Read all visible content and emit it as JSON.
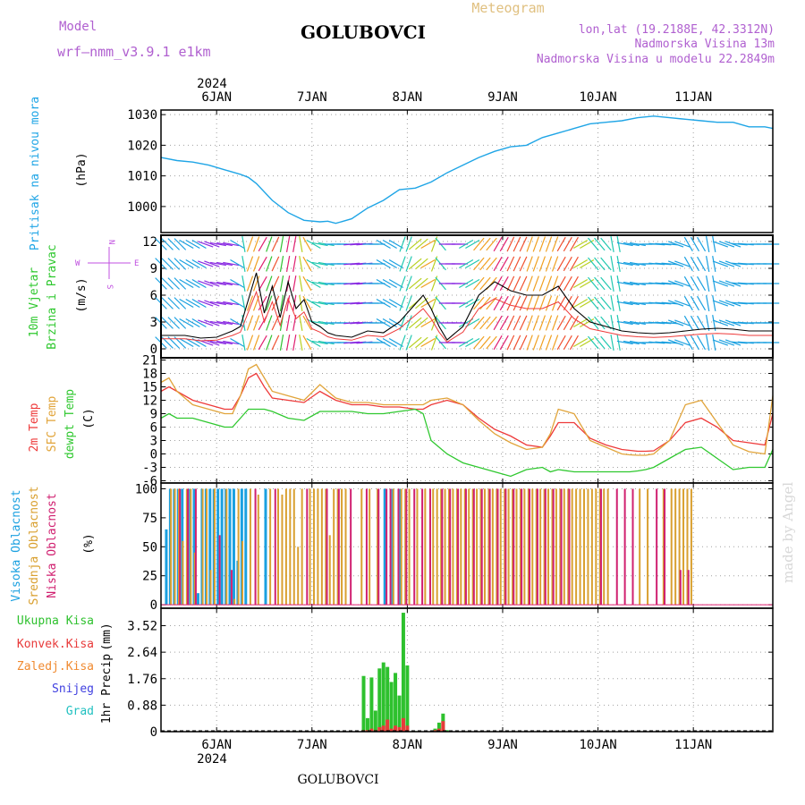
{
  "header": {
    "model_label": "Model",
    "model_name": "wrf—nmm_v3.9.1 e1km",
    "station": "GOLUBOVCI",
    "product": "Meteogram",
    "lonlat": "lon,lat (19.2188E, 42.3312N)",
    "elevation": "Nadmorska Visina 13m",
    "model_elevation": "Nadmorska Visina u modelu 22.2849m",
    "credit": "made by Angel",
    "footer_station": "GOLUBOVCI"
  },
  "colors": {
    "frame": "#000000",
    "grid": "#a0a0a0",
    "pressure": "#1fa5e6",
    "temp2m": "#ee3a3a",
    "sfc_temp": "#e1a43a",
    "dewpoint": "#2fc82f",
    "cloud_high": "#1aa0e0",
    "cloud_mid": "#d9a030",
    "cloud_low": "#d02070",
    "precip_total": "#2ec12e",
    "precip_conv": "#e83a3a",
    "precip_frozen": "#f08a30",
    "snow": "#4040e0",
    "hail": "#20c0c0",
    "title_purple": "#b060d0",
    "title_gold": "#e0c080"
  },
  "time_axis": {
    "year": "2024",
    "day_labels": [
      "6JAN",
      "7JAN",
      "8JAN",
      "9JAN",
      "10JAN",
      "11JAN"
    ],
    "hours_range": [
      -14,
      140
    ]
  },
  "chart_data": [
    {
      "type": "line",
      "id": "pressure",
      "ylabel_main": "Pritisak na nivou mora",
      "ylabel_unit": "(hPa)",
      "yticks": [
        1000,
        1010,
        1020,
        1030
      ],
      "ylim": [
        991.5,
        1031.5
      ],
      "grid": true,
      "series": [
        {
          "x": [
            -14,
            -10,
            -6,
            -2,
            2,
            6,
            8,
            10,
            14,
            18,
            22,
            26,
            28,
            30,
            34,
            38,
            42,
            46,
            50,
            54,
            58,
            62,
            66,
            70,
            74,
            78,
            82,
            86,
            90,
            94,
            98,
            102,
            106,
            110,
            114,
            118,
            122,
            126,
            130,
            134,
            138,
            140
          ],
          "y": [
            1016,
            1015,
            1014.5,
            1013.5,
            1012,
            1010.5,
            1009.5,
            1007.5,
            1002,
            998,
            995.5,
            995,
            995.2,
            994.5,
            996,
            999.5,
            1002,
            1005.5,
            1006,
            1008,
            1011,
            1013.5,
            1016,
            1018,
            1019.5,
            1020,
            1022.5,
            1024,
            1025.5,
            1027,
            1027.5,
            1028,
            1029,
            1029.5,
            1029,
            1028.5,
            1028,
            1027.5,
            1027.5,
            1026,
            1026,
            1025.5
          ]
        }
      ]
    },
    {
      "type": "line",
      "id": "wind",
      "ylabel_main": "10m Vjetar",
      "ylabel_sub": "Brzina i Pravac",
      "ylabel_unit": "(m/s)",
      "compass": {
        "n": "N",
        "s": "S",
        "w": "W",
        "e": "E"
      },
      "yticks": [
        0,
        3,
        6,
        9,
        12
      ],
      "ylim": [
        -1,
        12.7
      ],
      "grid": true,
      "series": [
        {
          "name": "speed",
          "x": [
            -14,
            -8,
            -4,
            0,
            4,
            6,
            8,
            10,
            12,
            14,
            16,
            18,
            20,
            22,
            24,
            26,
            28,
            30,
            34,
            38,
            42,
            46,
            50,
            52,
            54,
            56,
            58,
            62,
            66,
            70,
            74,
            78,
            82,
            86,
            90,
            94,
            98,
            102,
            106,
            110,
            114,
            118,
            122,
            126,
            130,
            134,
            138,
            140
          ],
          "y": [
            1.5,
            1.5,
            1.2,
            1.3,
            2.0,
            2.5,
            5.5,
            8.5,
            4.0,
            7.0,
            3.5,
            7.5,
            4.5,
            5.5,
            3.0,
            2.5,
            1.8,
            1.5,
            1.3,
            2.0,
            1.8,
            3.0,
            5.0,
            6.0,
            4.5,
            2.5,
            1.0,
            2.5,
            6.0,
            7.5,
            6.5,
            6.0,
            6.0,
            7.0,
            4.5,
            3.0,
            2.5,
            2.0,
            1.8,
            1.7,
            1.8,
            2.0,
            2.2,
            2.3,
            2.2,
            2.0,
            2.0,
            2.0
          ]
        }
      ],
      "direction_deg": [
        135,
        120,
        110,
        100,
        120,
        170,
        200,
        210,
        200,
        205,
        190,
        190,
        170,
        150,
        120,
        100,
        90,
        90,
        85,
        90,
        120,
        200,
        230,
        240,
        200,
        140,
        90,
        60,
        40,
        30,
        25,
        20,
        20,
        30,
        60,
        140,
        170,
        100,
        90,
        95,
        110,
        150,
        170,
        110,
        95,
        90,
        90,
        90
      ]
    },
    {
      "type": "line",
      "id": "temperature",
      "ylabel_series": [
        "2m Temp",
        "SFC Temp",
        "dewpt Temp"
      ],
      "ylabel_unit": "(C)",
      "yticks": [
        -6,
        -3,
        0,
        3,
        6,
        9,
        12,
        15,
        18,
        21
      ],
      "ylim": [
        -6.5,
        21.5
      ],
      "grid": true,
      "x": [
        -14,
        -12,
        -10,
        -6,
        -2,
        2,
        4,
        6,
        8,
        10,
        12,
        14,
        18,
        22,
        26,
        28,
        30,
        34,
        38,
        42,
        46,
        50,
        52,
        54,
        58,
        62,
        66,
        70,
        74,
        78,
        82,
        84,
        86,
        90,
        94,
        98,
        102,
        104,
        106,
        108,
        110,
        114,
        118,
        122,
        126,
        130,
        134,
        138,
        140
      ],
      "series": [
        {
          "name": "2m Temp",
          "y": [
            14,
            15,
            14,
            12,
            11,
            10,
            10,
            13,
            17,
            18,
            15,
            12.5,
            12,
            11.5,
            14,
            13,
            12,
            11,
            11,
            10.5,
            10.5,
            10,
            10,
            11,
            12,
            11,
            8,
            5.5,
            4,
            2,
            1.5,
            4,
            7,
            7,
            3.5,
            2,
            1,
            0.8,
            0.6,
            0.6,
            0.7,
            3,
            7,
            8,
            6,
            3,
            2.5,
            2,
            9
          ]
        },
        {
          "name": "SFC Temp",
          "y": [
            16,
            17,
            14,
            11,
            10,
            9,
            9,
            13,
            19,
            20,
            17,
            14,
            13,
            12,
            15.5,
            14,
            12.5,
            11.5,
            11.5,
            11,
            11,
            11,
            11,
            12,
            12.5,
            11,
            7.5,
            4.5,
            2.5,
            1,
            1.5,
            4.5,
            10,
            9,
            3,
            1.5,
            0,
            -0.2,
            -0.3,
            -0.3,
            0,
            3,
            11,
            12,
            7,
            2,
            0.5,
            0,
            13
          ]
        },
        {
          "name": "dewpt Temp",
          "y": [
            8,
            9,
            8,
            8,
            7,
            6,
            6,
            8,
            10,
            10,
            10,
            9.5,
            8,
            7.5,
            9.5,
            9.5,
            9.5,
            9.5,
            9,
            9,
            9.5,
            10,
            9,
            3,
            0,
            -2,
            -3,
            -4,
            -5,
            -3.5,
            -3,
            -4,
            -3.5,
            -4,
            -4,
            -4,
            -4,
            -4,
            -3.8,
            -3.5,
            -3,
            -1,
            1,
            1.5,
            -1,
            -3.5,
            -3,
            -3,
            1
          ]
        }
      ]
    },
    {
      "type": "bar",
      "id": "cloud",
      "ylabel_series": [
        "Visoka Oblacnost",
        "Srednja Oblacnost",
        "Niska Oblacnost"
      ],
      "ylabel_unit": "(%)",
      "yticks": [
        0,
        25,
        50,
        75,
        100
      ],
      "ylim": [
        -3,
        105
      ],
      "grid": true,
      "series": [
        {
          "name": "Visoka Oblacnost",
          "x": [
            -13,
            -12,
            -11,
            -10,
            -9,
            -7,
            -6,
            -5,
            -4,
            -3,
            -2,
            -1,
            0,
            1,
            2,
            3,
            4,
            5,
            6,
            7,
            12,
            42,
            44,
            46
          ],
          "y": [
            65,
            100,
            100,
            100,
            100,
            100,
            100,
            10,
            100,
            100,
            100,
            100,
            100,
            100,
            100,
            100,
            100,
            38,
            100,
            100,
            100,
            100,
            100,
            100
          ]
        },
        {
          "name": "Srednja Oblacnost",
          "x": [
            -12,
            -11,
            -10,
            -9,
            -8,
            -7,
            -6,
            -4,
            -3,
            -2,
            -1,
            2,
            4,
            5,
            6,
            8,
            10,
            13,
            15,
            16,
            17,
            18,
            19,
            20,
            21,
            23,
            24,
            25,
            26,
            27,
            28,
            29,
            30,
            31,
            32,
            36,
            38,
            40,
            44,
            46,
            47,
            48,
            50,
            52,
            54,
            55,
            56,
            57,
            58,
            59,
            60,
            61,
            62,
            63,
            64,
            65,
            66,
            67,
            68,
            69,
            70,
            71,
            72,
            73,
            74,
            75,
            76,
            77,
            78,
            79,
            80,
            81,
            82,
            83,
            84,
            85,
            86,
            87,
            88,
            89,
            90,
            91,
            92,
            93,
            94,
            95,
            96,
            97,
            98,
            106,
            108,
            112,
            114,
            115,
            116,
            117,
            118,
            119
          ],
          "y": [
            100,
            100,
            100,
            55,
            100,
            100,
            45,
            100,
            100,
            30,
            100,
            100,
            5,
            100,
            55,
            100,
            95,
            100,
            100,
            95,
            100,
            100,
            100,
            50,
            100,
            100,
            100,
            100,
            100,
            100,
            60,
            100,
            100,
            100,
            100,
            100,
            100,
            100,
            100,
            100,
            100,
            100,
            100,
            100,
            100,
            100,
            100,
            100,
            100,
            100,
            100,
            100,
            100,
            100,
            100,
            100,
            100,
            100,
            100,
            100,
            100,
            100,
            100,
            100,
            100,
            100,
            100,
            100,
            100,
            100,
            100,
            100,
            100,
            100,
            100,
            100,
            100,
            100,
            100,
            100,
            100,
            100,
            100,
            100,
            100,
            100,
            100,
            100,
            100,
            100,
            100,
            100,
            100,
            100,
            100,
            100,
            100,
            100
          ]
        },
        {
          "name": "Niska Oblacnost",
          "x": [
            -10,
            -8,
            -6,
            0,
            3,
            9,
            14,
            22,
            27,
            30,
            33,
            37,
            40,
            42,
            43,
            45,
            47,
            49,
            51,
            53,
            56,
            58,
            60,
            62,
            64,
            66,
            68,
            70,
            72,
            74,
            76,
            78,
            80,
            82,
            84,
            86,
            88,
            96,
            100,
            102,
            104,
            110,
            112,
            116,
            118
          ],
          "y": [
            100,
            100,
            100,
            60,
            30,
            100,
            100,
            100,
            100,
            100,
            100,
            100,
            100,
            100,
            100,
            100,
            100,
            100,
            100,
            100,
            100,
            100,
            100,
            100,
            100,
            100,
            100,
            100,
            100,
            100,
            100,
            100,
            100,
            100,
            100,
            100,
            100,
            100,
            100,
            100,
            100,
            100,
            100,
            30,
            30
          ]
        }
      ]
    },
    {
      "type": "bar",
      "id": "precip",
      "legend": [
        "Ukupna Kisa",
        "Konvek.Kisa",
        "Zaledj.Kisa",
        "Snijeg",
        "Grad"
      ],
      "ylabel_main": "1hr Precip",
      "ylabel_unit": "(mm)",
      "yticks": [
        0,
        0.88,
        1.76,
        2.64,
        3.52
      ],
      "ytick_labels": [
        "0",
        "0.88",
        "1.76",
        "2.64",
        "3.52"
      ],
      "ylim": [
        0,
        4.1
      ],
      "grid": true,
      "series": [
        {
          "name": "Ukupna Kisa",
          "x": [
            20,
            30,
            37,
            38,
            39,
            40,
            41,
            42,
            43,
            44,
            45,
            46,
            47,
            48,
            50,
            55,
            56,
            57,
            58
          ],
          "y": [
            0.02,
            0.02,
            1.85,
            0.45,
            1.8,
            0.7,
            2.1,
            2.3,
            2.15,
            1.65,
            1.95,
            1.2,
            3.95,
            2.2,
            0.02,
            0.1,
            0.3,
            0.6,
            0.05
          ]
        },
        {
          "name": "Konvek.Kisa",
          "x": [
            20,
            30,
            37,
            38,
            39,
            40,
            41,
            42,
            43,
            44,
            45,
            46,
            47,
            48,
            55,
            56,
            57
          ],
          "y": [
            0.01,
            0.01,
            0.05,
            0.05,
            0.1,
            0.05,
            0.15,
            0.2,
            0.4,
            0.1,
            0.2,
            0.15,
            0.45,
            0.2,
            0.05,
            0.1,
            0.35
          ]
        }
      ]
    }
  ]
}
